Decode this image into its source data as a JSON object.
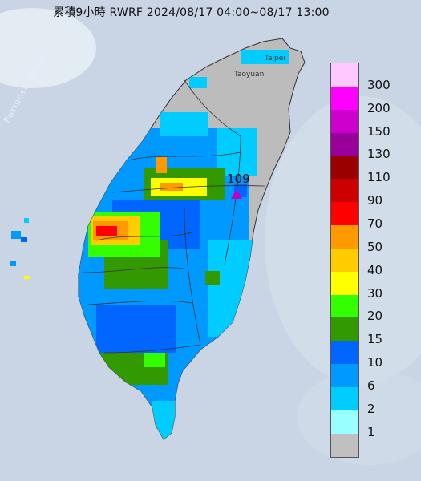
{
  "title": "累積9小時 RWRF 2024/08/17 04:00~08/17 13:00",
  "sea_label": "Formosa Strait",
  "cities": [
    "Taipei",
    "Taoyuan"
  ],
  "max_value_label": "109",
  "colors": {
    "sea": "#c9d5e4",
    "land": "#bcbcbc",
    "marker": "#c000c0"
  },
  "legend": {
    "items": [
      {
        "label": "300",
        "color": "#ffc8ff"
      },
      {
        "label": "200",
        "color": "#ff00ff"
      },
      {
        "label": "150",
        "color": "#cc00cc"
      },
      {
        "label": "130",
        "color": "#990099"
      },
      {
        "label": "110",
        "color": "#990000"
      },
      {
        "label": "90",
        "color": "#cc0000"
      },
      {
        "label": "70",
        "color": "#ff0000"
      },
      {
        "label": "50",
        "color": "#ff9900"
      },
      {
        "label": "40",
        "color": "#ffcc00"
      },
      {
        "label": "30",
        "color": "#ffff00"
      },
      {
        "label": "20",
        "color": "#33ff00"
      },
      {
        "label": "15",
        "color": "#339900"
      },
      {
        "label": "10",
        "color": "#0066ff"
      },
      {
        "label": "6",
        "color": "#0099ff"
      },
      {
        "label": "2",
        "color": "#00ccff"
      },
      {
        "label": "1",
        "color": "#99ffff"
      },
      {
        "label": "",
        "color": "#c0c0c0"
      }
    ]
  }
}
